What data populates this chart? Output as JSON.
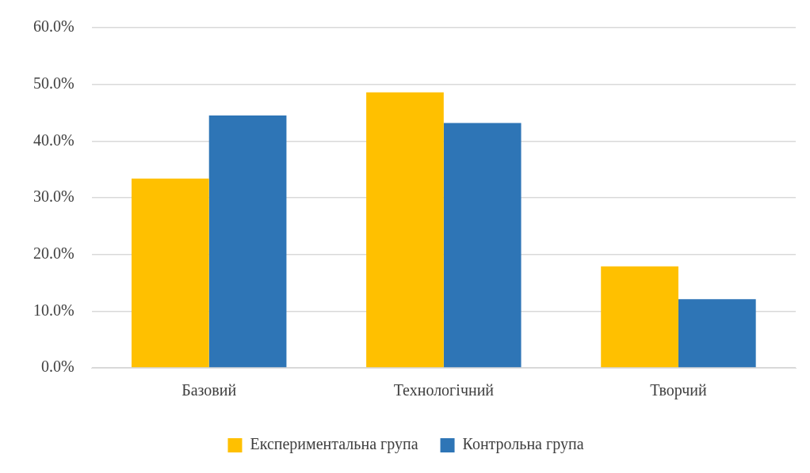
{
  "chart_data": {
    "type": "bar",
    "categories": [
      "Базовий",
      "Технологічний",
      "Творчий"
    ],
    "series": [
      {
        "name": "Експериментальна група",
        "color": "#ffc000",
        "values": [
          33.4,
          48.6,
          17.9
        ]
      },
      {
        "name": "Контрольна група",
        "color": "#2e75b6",
        "values": [
          44.5,
          43.2,
          12.1
        ]
      }
    ],
    "ylim": [
      0,
      60
    ],
    "yticks": [
      {
        "value": 0,
        "label": "0.0%"
      },
      {
        "value": 10,
        "label": "10.0%"
      },
      {
        "value": 20,
        "label": "20.0%"
      },
      {
        "value": 30,
        "label": "30.0%"
      },
      {
        "value": 40,
        "label": "40.0%"
      },
      {
        "value": 50,
        "label": "50.0%"
      },
      {
        "value": 60,
        "label": "60.0%"
      }
    ],
    "grid": "y",
    "legend": "bottom"
  }
}
